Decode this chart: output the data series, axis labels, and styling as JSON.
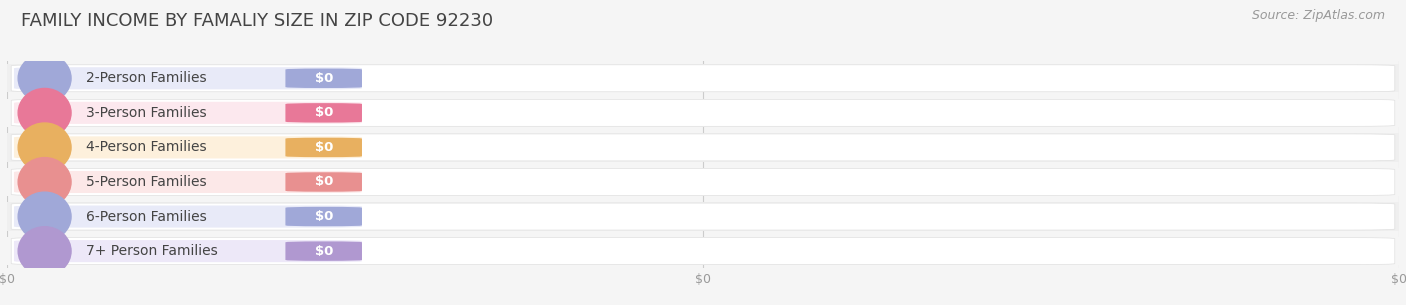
{
  "title": "FAMILY INCOME BY FAMALIY SIZE IN ZIP CODE 92230",
  "source_text": "Source: ZipAtlas.com",
  "categories": [
    "2-Person Families",
    "3-Person Families",
    "4-Person Families",
    "5-Person Families",
    "6-Person Families",
    "7+ Person Families"
  ],
  "values": [
    0,
    0,
    0,
    0,
    0,
    0
  ],
  "bar_colors": [
    "#a0a8d8",
    "#e87898",
    "#e8b060",
    "#e89090",
    "#a0a8d8",
    "#b098d0"
  ],
  "bar_light_colors": [
    "#e8eaf8",
    "#fce8ee",
    "#fdf0dc",
    "#fce8e8",
    "#e8eaf8",
    "#ede8f8"
  ],
  "value_labels": [
    "$0",
    "$0",
    "$0",
    "$0",
    "$0",
    "$0"
  ],
  "x_tick_labels": [
    "$0",
    "$0",
    "$0"
  ],
  "background_color": "#f5f5f5",
  "row_bg_color": "#efefef",
  "title_fontsize": 13,
  "label_fontsize": 10,
  "source_fontsize": 9
}
